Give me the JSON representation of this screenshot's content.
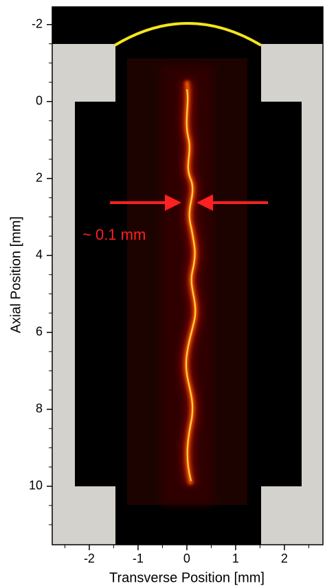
{
  "chart_data": {
    "type": "image",
    "xlabel": "Transverse Position [mm]",
    "ylabel": "Axial Position [mm]",
    "annotation": "~ 0.1 mm",
    "xlim": [
      -2.76,
      2.79
    ],
    "ylim": [
      -2.46,
      11.52
    ],
    "xticks": [
      -2,
      -1,
      0,
      1,
      2
    ],
    "yticks": [
      -2,
      0,
      2,
      4,
      6,
      8,
      10
    ],
    "xminor": [
      -2.5,
      -1.5,
      -0.5,
      0.5,
      1.5,
      2.5
    ],
    "yminor": [
      -1.5,
      -1,
      -0.5,
      0.5,
      1,
      1.5,
      2.5,
      3,
      3.5,
      4.5,
      5,
      5.5,
      6.5,
      7,
      7.5,
      8.5,
      9,
      9.5,
      10.5,
      11
    ],
    "y_inverted": true
  }
}
